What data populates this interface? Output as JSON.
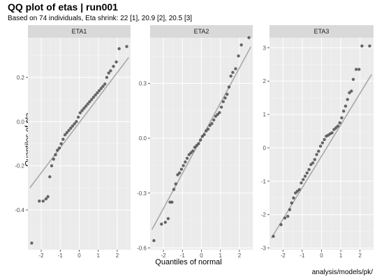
{
  "title": "QQ plot of etas | run001",
  "subtitle": "Based on 74 individuals, Eta shrink: 22 [1], 20.9 [2], 20.5 [3]",
  "caption": "analysis/models/pk/",
  "colors": {
    "panel_bg": "#ebebeb",
    "grid_major": "#ffffff",
    "strip_bg": "#d9d9d9",
    "point": "#4d4d4d",
    "line": "#a8a8a8"
  },
  "chart_data": {
    "type": "scatter",
    "xlabel": "Quantiles of normal",
    "ylabel": "Quantiles of eta",
    "grid": true,
    "facets": [
      {
        "name": "ETA1",
        "xlim": [
          -2.7,
          2.7
        ],
        "ylim": [
          -0.58,
          0.38
        ],
        "x_ticks": [
          -2,
          -1,
          0,
          1,
          2
        ],
        "y_ticks": [
          -0.4,
          -0.2,
          0.0,
          0.2
        ],
        "x_tick_labels": [
          "-2",
          "-1",
          "0",
          "1",
          "2"
        ],
        "y_tick_labels": [
          "-0.4",
          "-0.2",
          "0.0",
          "0.2"
        ],
        "reference_line": [
          [
            -2.6,
            -0.3
          ],
          [
            2.6,
            0.29
          ]
        ],
        "points": {
          "x": [
            -2.5,
            -2.1,
            -1.9,
            -1.75,
            -1.65,
            -1.55,
            -1.45,
            -1.35,
            -1.25,
            -1.15,
            -1.05,
            -0.95,
            -0.85,
            -0.75,
            -0.65,
            -0.55,
            -0.45,
            -0.35,
            -0.25,
            -0.15,
            -0.05,
            0.05,
            0.15,
            0.25,
            0.35,
            0.45,
            0.55,
            0.65,
            0.75,
            0.85,
            0.95,
            1.05,
            1.15,
            1.25,
            1.35,
            1.45,
            1.55,
            1.65,
            1.8,
            1.95,
            2.1,
            2.5
          ],
          "y": [
            -0.55,
            -0.36,
            -0.36,
            -0.35,
            -0.34,
            -0.25,
            -0.2,
            -0.17,
            -0.15,
            -0.13,
            -0.12,
            -0.1,
            -0.08,
            -0.06,
            -0.05,
            -0.04,
            -0.03,
            -0.02,
            -0.01,
            0.0,
            0.02,
            0.04,
            0.05,
            0.06,
            0.07,
            0.08,
            0.09,
            0.1,
            0.11,
            0.12,
            0.13,
            0.14,
            0.15,
            0.16,
            0.17,
            0.2,
            0.22,
            0.23,
            0.25,
            0.27,
            0.33,
            0.34
          ]
        }
      },
      {
        "name": "ETA2",
        "xlim": [
          -2.7,
          2.7
        ],
        "ylim": [
          -0.61,
          0.55
        ],
        "x_ticks": [
          -2,
          -1,
          0,
          1,
          2
        ],
        "y_ticks": [
          -0.6,
          -0.3,
          0.0,
          0.3
        ],
        "x_tick_labels": [
          "-2",
          "-1",
          "0",
          "1",
          "2"
        ],
        "y_tick_labels": [
          "-0.6",
          "-0.3",
          "0.0",
          "0.3"
        ],
        "reference_line": [
          [
            -2.6,
            -0.5
          ],
          [
            2.6,
            0.5
          ]
        ],
        "points": {
          "x": [
            -2.5,
            -2.1,
            -1.9,
            -1.75,
            -1.65,
            -1.55,
            -1.45,
            -1.35,
            -1.25,
            -1.15,
            -1.05,
            -0.95,
            -0.85,
            -0.75,
            -0.65,
            -0.55,
            -0.45,
            -0.35,
            -0.25,
            -0.15,
            -0.05,
            0.05,
            0.15,
            0.25,
            0.35,
            0.45,
            0.55,
            0.65,
            0.75,
            0.85,
            0.95,
            1.05,
            1.15,
            1.25,
            1.35,
            1.45,
            1.55,
            1.65,
            1.8,
            1.95,
            2.1,
            2.5
          ],
          "y": [
            -0.56,
            -0.47,
            -0.46,
            -0.44,
            -0.35,
            -0.35,
            -0.28,
            -0.25,
            -0.2,
            -0.19,
            -0.17,
            -0.15,
            -0.13,
            -0.11,
            -0.09,
            -0.08,
            -0.07,
            -0.05,
            -0.04,
            -0.03,
            -0.01,
            0.01,
            0.02,
            0.04,
            0.05,
            0.07,
            0.08,
            0.1,
            0.12,
            0.13,
            0.14,
            0.17,
            0.2,
            0.22,
            0.24,
            0.28,
            0.34,
            0.36,
            0.38,
            0.45,
            0.51,
            0.55
          ]
        }
      },
      {
        "name": "ETA3",
        "xlim": [
          -2.7,
          2.7
        ],
        "ylim": [
          -3.05,
          3.3
        ],
        "x_ticks": [
          -2,
          -1,
          0,
          1,
          2
        ],
        "y_ticks": [
          -3,
          -2,
          -1,
          0,
          1,
          2,
          3
        ],
        "x_tick_labels": [
          "-2",
          "-1",
          "0",
          "1",
          "2"
        ],
        "y_tick_labels": [
          "-3",
          "-2",
          "-1",
          "0",
          "1",
          "2",
          "3"
        ],
        "reference_line": [
          [
            -2.6,
            -2.7
          ],
          [
            2.6,
            2.2
          ]
        ],
        "points": {
          "x": [
            -2.5,
            -2.1,
            -1.9,
            -1.75,
            -1.65,
            -1.55,
            -1.45,
            -1.35,
            -1.25,
            -1.15,
            -1.05,
            -0.95,
            -0.85,
            -0.75,
            -0.65,
            -0.55,
            -0.45,
            -0.35,
            -0.25,
            -0.15,
            -0.05,
            0.05,
            0.15,
            0.25,
            0.35,
            0.45,
            0.55,
            0.65,
            0.75,
            0.85,
            0.95,
            1.05,
            1.15,
            1.25,
            1.35,
            1.45,
            1.55,
            1.65,
            1.8,
            1.95,
            2.1,
            2.5
          ],
          "y": [
            -2.65,
            -2.3,
            -2.1,
            -2.05,
            -1.85,
            -1.65,
            -1.5,
            -1.35,
            -1.3,
            -1.25,
            -1.05,
            -0.95,
            -0.85,
            -0.75,
            -0.65,
            -0.5,
            -0.45,
            -0.35,
            -0.2,
            -0.1,
            0.05,
            0.15,
            0.25,
            0.35,
            0.38,
            0.42,
            0.45,
            0.55,
            0.6,
            0.65,
            0.75,
            0.9,
            1.1,
            1.25,
            1.45,
            1.65,
            1.7,
            2.05,
            2.35,
            2.35,
            3.05,
            3.05
          ]
        }
      }
    ]
  }
}
